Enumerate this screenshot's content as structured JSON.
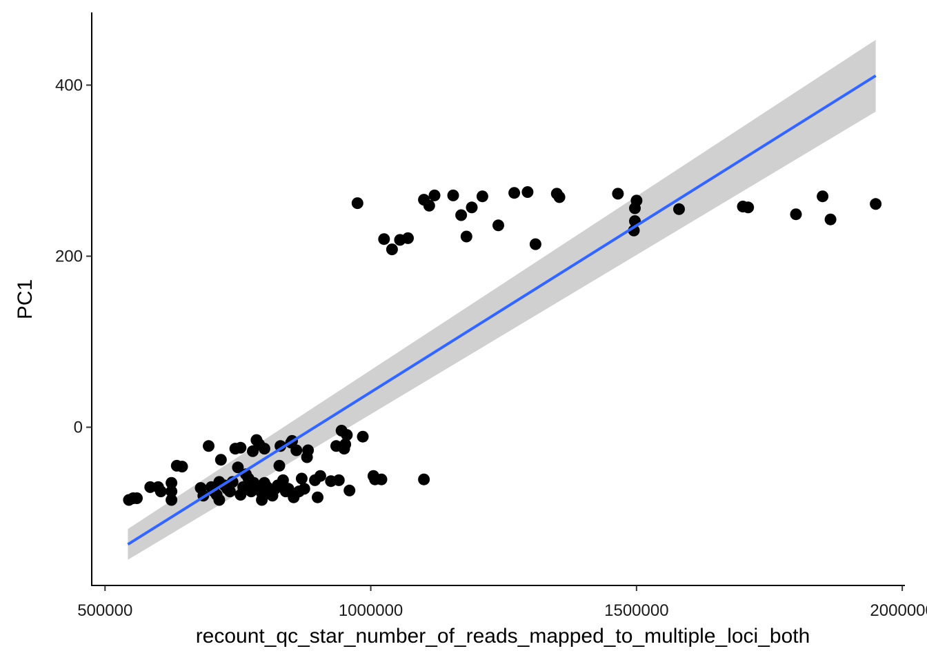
{
  "chart_data": {
    "type": "scatter",
    "xlabel": "recount_qc_star_number_of_reads_mapped_to_multiple_loci_both",
    "ylabel": "PC1",
    "xlim": [
      475000,
      2005000
    ],
    "ylim": [
      -185,
      485
    ],
    "x_ticks": [
      500000,
      1000000,
      1500000,
      2000000
    ],
    "x_tick_labels": [
      "500000",
      "1000000",
      "1500000",
      "2000000"
    ],
    "y_ticks": [
      0,
      200,
      400
    ],
    "y_tick_labels": [
      "0",
      "200",
      "400"
    ],
    "grid": false,
    "legend": "none",
    "colors": {
      "points": "#000000",
      "fit_line": "#3366ff",
      "confidence_band": "#bebebe"
    },
    "fit": {
      "method": "linear",
      "x": [
        543000,
        1950000
      ],
      "y": [
        -137,
        411
      ],
      "ci_low": [
        -155,
        369
      ],
      "ci_high": [
        -119,
        453
      ]
    },
    "points": [
      [
        975000,
        262
      ],
      [
        1025000,
        220
      ],
      [
        1040000,
        208
      ],
      [
        1055000,
        219
      ],
      [
        1070000,
        221
      ],
      [
        1100000,
        266
      ],
      [
        1110000,
        259
      ],
      [
        1120000,
        271
      ],
      [
        1155000,
        271
      ],
      [
        1170000,
        248
      ],
      [
        1180000,
        223
      ],
      [
        1190000,
        257
      ],
      [
        1210000,
        270
      ],
      [
        1240000,
        236
      ],
      [
        1270000,
        274
      ],
      [
        1295000,
        275
      ],
      [
        1310000,
        214
      ],
      [
        1350000,
        273
      ],
      [
        1355000,
        269
      ],
      [
        1465000,
        273
      ],
      [
        1495000,
        230
      ],
      [
        1497000,
        241
      ],
      [
        1497000,
        256
      ],
      [
        1500000,
        265
      ],
      [
        1580000,
        255
      ],
      [
        1700000,
        258
      ],
      [
        1710000,
        257
      ],
      [
        1800000,
        249
      ],
      [
        1850000,
        270
      ],
      [
        1865000,
        243
      ],
      [
        1950000,
        261
      ],
      [
        545000,
        -85
      ],
      [
        553000,
        -83
      ],
      [
        560000,
        -83
      ],
      [
        585000,
        -70
      ],
      [
        600000,
        -70
      ],
      [
        605000,
        -75
      ],
      [
        625000,
        -65
      ],
      [
        625000,
        -75
      ],
      [
        625000,
        -85
      ],
      [
        635000,
        -45
      ],
      [
        645000,
        -46
      ],
      [
        680000,
        -71
      ],
      [
        685000,
        -80
      ],
      [
        695000,
        -22
      ],
      [
        700000,
        -70
      ],
      [
        705000,
        -75
      ],
      [
        710000,
        -79
      ],
      [
        715000,
        -85
      ],
      [
        715000,
        -64
      ],
      [
        718000,
        -38
      ],
      [
        725000,
        -68
      ],
      [
        730000,
        -72
      ],
      [
        735000,
        -75
      ],
      [
        740000,
        -64
      ],
      [
        745000,
        -25
      ],
      [
        750000,
        -47
      ],
      [
        755000,
        -79
      ],
      [
        755000,
        -24
      ],
      [
        760000,
        -70
      ],
      [
        765000,
        -55
      ],
      [
        770000,
        -60
      ],
      [
        775000,
        -75
      ],
      [
        778000,
        -28
      ],
      [
        780000,
        -65
      ],
      [
        785000,
        -72
      ],
      [
        785000,
        -15
      ],
      [
        790000,
        -20
      ],
      [
        795000,
        -85
      ],
      [
        795000,
        -77
      ],
      [
        800000,
        -65
      ],
      [
        800000,
        -25
      ],
      [
        805000,
        -70
      ],
      [
        810000,
        -75
      ],
      [
        815000,
        -80
      ],
      [
        820000,
        -72
      ],
      [
        825000,
        -68
      ],
      [
        828000,
        -45
      ],
      [
        830000,
        -22
      ],
      [
        835000,
        -62
      ],
      [
        840000,
        -75
      ],
      [
        845000,
        -72
      ],
      [
        850000,
        -18
      ],
      [
        852000,
        -16
      ],
      [
        855000,
        -82
      ],
      [
        860000,
        -27
      ],
      [
        865000,
        -75
      ],
      [
        870000,
        -60
      ],
      [
        875000,
        -72
      ],
      [
        880000,
        -35
      ],
      [
        882000,
        -27
      ],
      [
        895000,
        -62
      ],
      [
        900000,
        -82
      ],
      [
        905000,
        -57
      ],
      [
        925000,
        -63
      ],
      [
        935000,
        -22
      ],
      [
        940000,
        -62
      ],
      [
        945000,
        -4
      ],
      [
        950000,
        -25
      ],
      [
        952000,
        -20
      ],
      [
        955000,
        -9
      ],
      [
        960000,
        -74
      ],
      [
        985000,
        -11
      ],
      [
        1005000,
        -57
      ],
      [
        1008000,
        -61
      ],
      [
        1020000,
        -61
      ],
      [
        1100000,
        -61
      ]
    ]
  }
}
